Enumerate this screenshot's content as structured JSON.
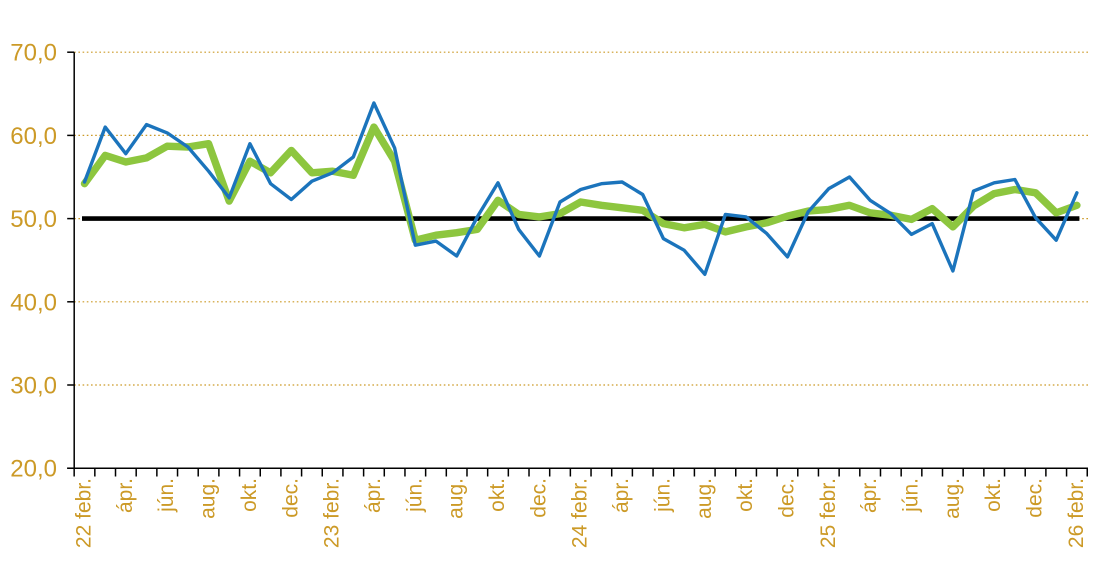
{
  "chart_data": {
    "type": "line",
    "title": "",
    "legend": "none",
    "x": [
      "2022 febr.",
      "2022 márc.",
      "2022 ápr.",
      "2022 máj.",
      "2022 jún.",
      "2022 júl.",
      "2022 aug.",
      "2022 szept.",
      "2022 okt.",
      "2022 nov.",
      "2022 dec.",
      "2023 jan.",
      "2023 febr.",
      "2023 márc.",
      "2023 ápr.",
      "2023 máj.",
      "2023 jún.",
      "2023 júl.",
      "2023 aug.",
      "2023 szept.",
      "2023 okt.",
      "2023 nov.",
      "2023 dec.",
      "2024 jan.",
      "2024 febr.",
      "2024 márc.",
      "2024 ápr.",
      "2024 máj.",
      "2024 jún.",
      "2024 júl.",
      "2024 aug.",
      "2024 szept.",
      "2024 okt.",
      "2024 nov.",
      "2024 dec.",
      "2025 jan.",
      "2025 febr.",
      "2025 márc.",
      "2025 ápr.",
      "2025 máj.",
      "2025 jún.",
      "2025 júl.",
      "2025 aug.",
      "2025 szept.",
      "2025 okt.",
      "2025 nov.",
      "2025 dec.",
      "2026 jan.",
      "2026 febr."
    ],
    "series": [
      {
        "name": "series-green-thick",
        "color": "#8dc63f",
        "stroke_width": 7.4,
        "values": [
          54.2,
          57.6,
          56.8,
          57.3,
          58.7,
          58.6,
          59.0,
          52.1,
          56.9,
          55.5,
          58.2,
          55.5,
          55.7,
          55.2,
          61.0,
          56.9,
          47.4,
          48.0,
          48.3,
          48.7,
          52.2,
          50.5,
          50.2,
          50.6,
          52.0,
          51.6,
          51.3,
          51.0,
          49.4,
          48.9,
          49.3,
          48.4,
          49.0,
          49.5,
          50.3,
          50.9,
          51.1,
          51.6,
          50.7,
          50.4,
          49.9,
          51.2,
          49.0,
          51.5,
          53.0,
          53.5,
          53.1,
          50.7,
          51.6
        ]
      },
      {
        "name": "series-blue-thin",
        "color": "#1b74bc",
        "stroke_width": 3.4,
        "values": [
          54.4,
          61.0,
          57.8,
          61.3,
          60.3,
          58.6,
          55.7,
          52.5,
          59.0,
          54.2,
          52.3,
          54.5,
          55.5,
          57.4,
          63.9,
          58.5,
          46.8,
          47.3,
          45.5,
          50.2,
          54.3,
          48.7,
          45.5,
          52.0,
          53.5,
          54.2,
          54.4,
          52.9,
          47.6,
          46.2,
          43.3,
          50.5,
          50.2,
          48.2,
          45.4,
          50.8,
          53.6,
          55.0,
          52.2,
          50.6,
          48.1,
          49.4,
          43.7,
          53.3,
          54.3,
          54.7,
          50.1,
          47.4,
          53.1
        ]
      }
    ],
    "reference_line": {
      "name": "reference-line-50",
      "value": 50,
      "color": "#000000",
      "stroke_width": 4.6
    },
    "ylim": [
      20,
      70
    ],
    "yticks": [
      20,
      30,
      40,
      50,
      60,
      70
    ],
    "ytick_labels": [
      "20,0",
      "30,0",
      "40,0",
      "50,0",
      "60,0",
      "70,0"
    ],
    "xtick_label_positions": [
      0,
      2,
      4,
      6,
      8,
      10,
      12,
      14,
      16,
      18,
      20,
      22,
      24,
      26,
      28,
      30,
      32,
      34,
      36,
      38,
      40,
      42,
      44,
      46,
      48
    ],
    "xtick_labels": [
      "22 febr.",
      "ápr.",
      "jún.",
      "aug.",
      "okt.",
      "dec.",
      "23 febr.",
      "ápr.",
      "jún.",
      "aug.",
      "okt.",
      "dec.",
      "24 febr.",
      "ápr.",
      "jún.",
      "aug.",
      "okt.",
      "dec.",
      "25 febr.",
      "ápr.",
      "jún.",
      "aug.",
      "okt.",
      "dec.",
      "26 febr."
    ],
    "grid": {
      "horizontal": true,
      "style": "dotted",
      "color": "#cc9a27"
    },
    "axis_text_color": "#cc9a27",
    "axis_line_color": "#000000"
  }
}
